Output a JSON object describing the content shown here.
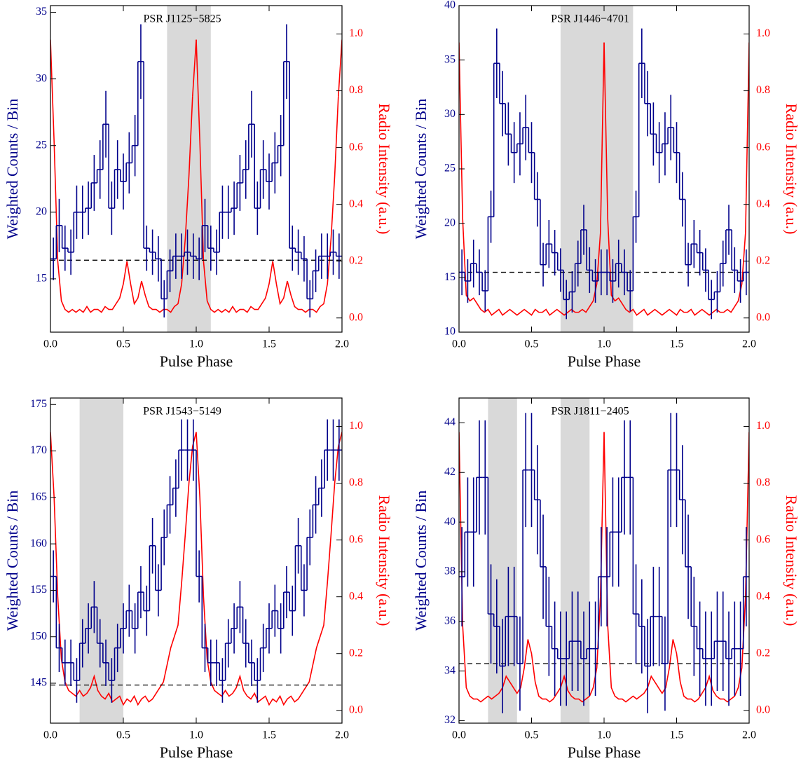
{
  "chart_data": [
    {
      "type": "histogram",
      "title": "PSR J1125−5825",
      "xlabel": "Pulse Phase",
      "ylabel": "Weighted Counts / Bin",
      "y2label": "Radio Intensity (a.u.)",
      "color": "#00008b",
      "radio_color": "#ff0000",
      "bins": [
        0,
        0.04,
        0.08,
        0.12,
        0.16,
        0.2,
        0.24,
        0.28,
        0.32,
        0.36,
        0.4,
        0.44,
        0.48,
        0.52,
        0.56,
        0.6,
        0.64,
        0.68,
        0.72,
        0.76,
        0.8,
        0.84,
        0.88,
        0.92,
        0.96,
        1
      ],
      "values": [
        16.5,
        19,
        17.3,
        17,
        20,
        20,
        20.3,
        22.2,
        23.2,
        26.6,
        20.3,
        23.2,
        22.3,
        23.7,
        25,
        31.3,
        17.3,
        17,
        16.5,
        13.5,
        15.6,
        16.7,
        16.7,
        17,
        16.7
      ],
      "errors": [
        1.6,
        2,
        1.7,
        1.7,
        2,
        2,
        2,
        2.1,
        2.2,
        2.5,
        2,
        2.2,
        2.1,
        2.3,
        2.3,
        2.8,
        1.7,
        1.7,
        1.7,
        1.4,
        1.6,
        1.7,
        1.7,
        1.7,
        1.7
      ],
      "background": 16.4,
      "shaded": [
        [
          0.8,
          1.1
        ]
      ],
      "radio_x": [
        0,
        0.025,
        0.05,
        0.075,
        0.1,
        0.125,
        0.15,
        0.175,
        0.2,
        0.225,
        0.25,
        0.275,
        0.3,
        0.325,
        0.35,
        0.375,
        0.4,
        0.425,
        0.45,
        0.475,
        0.5,
        0.525,
        0.55,
        0.575,
        0.6,
        0.625,
        0.65,
        0.675,
        0.7,
        0.725,
        0.75,
        0.775,
        0.8,
        0.825,
        0.85,
        0.875,
        0.9,
        0.925,
        0.95,
        0.975
      ],
      "radio_values": [
        0.98,
        0.62,
        0.2,
        0.06,
        0.03,
        0.02,
        0.03,
        0.02,
        0.03,
        0.02,
        0.04,
        0.02,
        0.03,
        0.03,
        0.02,
        0.04,
        0.03,
        0.03,
        0.05,
        0.07,
        0.12,
        0.2,
        0.12,
        0.05,
        0.07,
        0.13,
        0.08,
        0.04,
        0.03,
        0.03,
        0.02,
        0.03,
        0.03,
        0.02,
        0.04,
        0.05,
        0.12,
        0.28,
        0.5,
        0.78
      ],
      "xlim": [
        0,
        2
      ],
      "xticks": [
        {
          "value": 0,
          "label": "0.0"
        },
        {
          "value": 0.5,
          "label": "0.5"
        },
        {
          "value": 1,
          "label": "1.0"
        },
        {
          "value": 1.5,
          "label": "1.5"
        },
        {
          "value": 2,
          "label": "2.0"
        }
      ],
      "ylim": [
        11,
        35.5
      ],
      "yticks": [
        15,
        20,
        25,
        30,
        35
      ],
      "y2lim": [
        -0.05,
        1.1
      ],
      "y2ticks": [
        {
          "value": 0,
          "label": "0.0"
        },
        {
          "value": 0.2,
          "label": "0.2"
        },
        {
          "value": 0.4,
          "label": "0.4"
        },
        {
          "value": 0.6,
          "label": "0.6"
        },
        {
          "value": 0.8,
          "label": "0.8"
        },
        {
          "value": 1,
          "label": "1.0"
        }
      ]
    },
    {
      "type": "histogram",
      "title": "PSR J1446−4701",
      "xlabel": "Pulse Phase",
      "ylabel": "Weighted Counts / Bin",
      "y2label": "Radio Intensity (a.u.)",
      "color": "#00008b",
      "radio_color": "#ff0000",
      "bins": [
        0,
        0.04,
        0.08,
        0.12,
        0.16,
        0.2,
        0.24,
        0.28,
        0.32,
        0.36,
        0.4,
        0.44,
        0.48,
        0.52,
        0.56,
        0.6,
        0.64,
        0.68,
        0.72,
        0.76,
        0.8,
        0.84,
        0.88,
        0.92,
        0.96,
        1
      ],
      "values": [
        15.5,
        14.7,
        16.3,
        15.5,
        13.8,
        20.6,
        34.7,
        31,
        28.2,
        26.5,
        27.3,
        28.8,
        26.5,
        22.2,
        16.2,
        18.1,
        17.3,
        15.7,
        13,
        13.7,
        16.3,
        19.4,
        15.7,
        14.7,
        15.5
      ],
      "errors": [
        2.1,
        2,
        2.2,
        2.1,
        1.9,
        2.4,
        3.2,
        3,
        2.9,
        2.8,
        2.9,
        3,
        2.8,
        2.5,
        2,
        2.2,
        2.1,
        2,
        1.8,
        1.9,
        2.1,
        2.3,
        2.1,
        2,
        2.1
      ],
      "background": 15.5,
      "shaded": [
        [
          0.7,
          1.2
        ]
      ],
      "radio_x": [
        0,
        0.025,
        0.05,
        0.075,
        0.1,
        0.125,
        0.15,
        0.175,
        0.2,
        0.225,
        0.25,
        0.275,
        0.3,
        0.325,
        0.35,
        0.375,
        0.4,
        0.425,
        0.45,
        0.475,
        0.5,
        0.525,
        0.55,
        0.575,
        0.6,
        0.625,
        0.65,
        0.675,
        0.7,
        0.725,
        0.75,
        0.775,
        0.8,
        0.825,
        0.85,
        0.875,
        0.9,
        0.925,
        0.95,
        0.975
      ],
      "radio_values": [
        0.97,
        0.35,
        0.08,
        0.06,
        0.07,
        0.05,
        0.03,
        0.02,
        0.03,
        0.01,
        0.02,
        0.03,
        0.01,
        0.02,
        0.03,
        0.02,
        0.01,
        0.02,
        0.03,
        0.02,
        0.01,
        0.03,
        0.02,
        0.02,
        0.03,
        0.01,
        0.02,
        0.03,
        0.02,
        0.01,
        0.02,
        0.03,
        0.02,
        0.02,
        0.03,
        0.02,
        0.04,
        0.06,
        0.12,
        0.3
      ],
      "xlim": [
        0,
        2
      ],
      "xticks": [
        {
          "value": 0,
          "label": "0.0"
        },
        {
          "value": 0.5,
          "label": "0.5"
        },
        {
          "value": 1,
          "label": "1.0"
        },
        {
          "value": 1.5,
          "label": "1.5"
        },
        {
          "value": 2,
          "label": "2.0"
        }
      ],
      "ylim": [
        10,
        40
      ],
      "yticks": [
        10,
        15,
        20,
        25,
        30,
        35,
        40
      ],
      "y2lim": [
        -0.05,
        1.1
      ],
      "y2ticks": [
        {
          "value": 0,
          "label": "0.0"
        },
        {
          "value": 0.2,
          "label": "0.2"
        },
        {
          "value": 0.4,
          "label": "0.4"
        },
        {
          "value": 0.6,
          "label": "0.6"
        },
        {
          "value": 0.8,
          "label": "0.8"
        },
        {
          "value": 1,
          "label": "1.0"
        }
      ]
    },
    {
      "type": "histogram",
      "title": "PSR J1543−5149",
      "xlabel": "Pulse Phase",
      "ylabel": "Weighted Counts / Bin",
      "y2label": "Radio Intensity (a.u.)",
      "color": "#00008b",
      "radio_color": "#ff0000",
      "bins": [
        0,
        0.04,
        0.08,
        0.12,
        0.16,
        0.2,
        0.24,
        0.28,
        0.32,
        0.36,
        0.4,
        0.44,
        0.48,
        0.52,
        0.56,
        0.6,
        0.64,
        0.68,
        0.72,
        0.76,
        0.8,
        0.84,
        0.88,
        0.92,
        0.96,
        1
      ],
      "values": [
        156.5,
        148.8,
        147.2,
        147.2,
        145.3,
        149.3,
        150.9,
        153.2,
        149.3,
        147.2,
        145.3,
        148.8,
        150.9,
        152.8,
        150.9,
        154.8,
        152.8,
        159.8,
        155,
        160.7,
        164.2,
        166,
        170.1,
        170.1,
        170.1
      ],
      "errors": [
        2.8,
        2.6,
        2.5,
        2.5,
        2.4,
        2.6,
        2.7,
        2.8,
        2.6,
        2.5,
        2.4,
        2.6,
        2.7,
        2.8,
        2.7,
        2.8,
        2.7,
        3,
        2.8,
        3,
        3.1,
        3.1,
        3.3,
        3.3,
        3.3
      ],
      "background": 144.8,
      "shaded": [
        [
          0.2,
          0.5
        ]
      ],
      "radio_x": [
        0,
        0.025,
        0.05,
        0.075,
        0.1,
        0.125,
        0.15,
        0.175,
        0.2,
        0.225,
        0.25,
        0.275,
        0.3,
        0.325,
        0.35,
        0.375,
        0.4,
        0.425,
        0.45,
        0.475,
        0.5,
        0.525,
        0.55,
        0.575,
        0.6,
        0.625,
        0.65,
        0.675,
        0.7,
        0.725,
        0.75,
        0.775,
        0.8,
        0.825,
        0.85,
        0.875,
        0.9,
        0.925,
        0.95,
        0.975
      ],
      "radio_values": [
        0.98,
        0.75,
        0.4,
        0.18,
        0.1,
        0.07,
        0.06,
        0.05,
        0.07,
        0.05,
        0.06,
        0.08,
        0.12,
        0.07,
        0.05,
        0.04,
        0.06,
        0.03,
        0.04,
        0.05,
        0.02,
        0.04,
        0.03,
        0.05,
        0.02,
        0.04,
        0.05,
        0.03,
        0.04,
        0.06,
        0.08,
        0.1,
        0.16,
        0.22,
        0.26,
        0.3,
        0.45,
        0.62,
        0.8,
        0.93
      ],
      "xlim": [
        0,
        2
      ],
      "xticks": [
        {
          "value": 0,
          "label": "0.0"
        },
        {
          "value": 0.5,
          "label": "0.5"
        },
        {
          "value": 1,
          "label": "1.0"
        },
        {
          "value": 1.5,
          "label": "1.5"
        },
        {
          "value": 2,
          "label": "2.0"
        }
      ],
      "ylim": [
        140.7,
        175.7
      ],
      "yticks": [
        145,
        150,
        155,
        160,
        165,
        170,
        175
      ],
      "y2lim": [
        -0.045,
        1.1
      ],
      "y2ticks": [
        {
          "value": 0,
          "label": "0.0"
        },
        {
          "value": 0.2,
          "label": "0.2"
        },
        {
          "value": 0.4,
          "label": "0.4"
        },
        {
          "value": 0.6,
          "label": "0.6"
        },
        {
          "value": 0.8,
          "label": "0.8"
        },
        {
          "value": 1,
          "label": "1.0"
        }
      ]
    },
    {
      "type": "histogram",
      "title": "PSR J1811−2405",
      "xlabel": "Pulse Phase",
      "ylabel": "Weighted Counts / Bin",
      "y2label": "Radio Intensity (a.u.)",
      "color": "#00008b",
      "radio_color": "#ff0000",
      "bins": [
        0,
        0.04,
        0.08,
        0.12,
        0.16,
        0.2,
        0.24,
        0.28,
        0.32,
        0.36,
        0.4,
        0.44,
        0.48,
        0.52,
        0.56,
        0.6,
        0.64,
        0.68,
        0.72,
        0.76,
        0.8,
        0.84,
        0.88,
        0.92,
        0.96,
        1
      ],
      "values": [
        37.8,
        39.6,
        39.6,
        41.8,
        41.8,
        36.3,
        35.8,
        34.2,
        36.2,
        36.2,
        34.3,
        42.1,
        42.1,
        40.9,
        38.2,
        35.8,
        34.9,
        34.5,
        34.5,
        35.2,
        35.2,
        34.5,
        34.9,
        34.9,
        37.8
      ],
      "errors": [
        2,
        2.2,
        2.2,
        2.3,
        2.3,
        2,
        1.9,
        1.9,
        2,
        2,
        1.9,
        2.3,
        2.3,
        2.2,
        2.1,
        2,
        1.9,
        1.9,
        1.9,
        2,
        2,
        1.9,
        1.9,
        1.9,
        2
      ],
      "background": 34.3,
      "shaded": [
        [
          0.2,
          0.4
        ],
        [
          0.7,
          0.9
        ]
      ],
      "radio_x": [
        0,
        0.025,
        0.05,
        0.075,
        0.1,
        0.125,
        0.15,
        0.175,
        0.2,
        0.225,
        0.25,
        0.275,
        0.3,
        0.325,
        0.35,
        0.375,
        0.4,
        0.425,
        0.45,
        0.475,
        0.5,
        0.525,
        0.55,
        0.575,
        0.6,
        0.625,
        0.65,
        0.675,
        0.7,
        0.725,
        0.75,
        0.775,
        0.8,
        0.825,
        0.85,
        0.875,
        0.9,
        0.925,
        0.95,
        0.975
      ],
      "radio_values": [
        0.98,
        0.3,
        0.08,
        0.05,
        0.04,
        0.04,
        0.03,
        0.04,
        0.05,
        0.04,
        0.05,
        0.06,
        0.08,
        0.12,
        0.1,
        0.08,
        0.06,
        0.08,
        0.15,
        0.25,
        0.2,
        0.1,
        0.05,
        0.04,
        0.04,
        0.03,
        0.04,
        0.06,
        0.08,
        0.12,
        0.07,
        0.05,
        0.04,
        0.04,
        0.03,
        0.04,
        0.05,
        0.08,
        0.15,
        0.4
      ],
      "xlim": [
        0,
        2
      ],
      "xticks": [
        {
          "value": 0,
          "label": "0.0"
        },
        {
          "value": 0.5,
          "label": "0.5"
        },
        {
          "value": 1,
          "label": "1.0"
        },
        {
          "value": 1.5,
          "label": "1.5"
        },
        {
          "value": 2,
          "label": "2.0"
        }
      ],
      "ylim": [
        31.9,
        45
      ],
      "yticks": [
        32,
        34,
        36,
        38,
        40,
        42,
        44
      ],
      "y2lim": [
        -0.045,
        1.1
      ],
      "y2ticks": [
        {
          "value": 0,
          "label": "0.0"
        },
        {
          "value": 0.2,
          "label": "0.2"
        },
        {
          "value": 0.4,
          "label": "0.4"
        },
        {
          "value": 0.6,
          "label": "0.6"
        },
        {
          "value": 0.8,
          "label": "0.8"
        },
        {
          "value": 1,
          "label": "1.0"
        }
      ]
    }
  ]
}
